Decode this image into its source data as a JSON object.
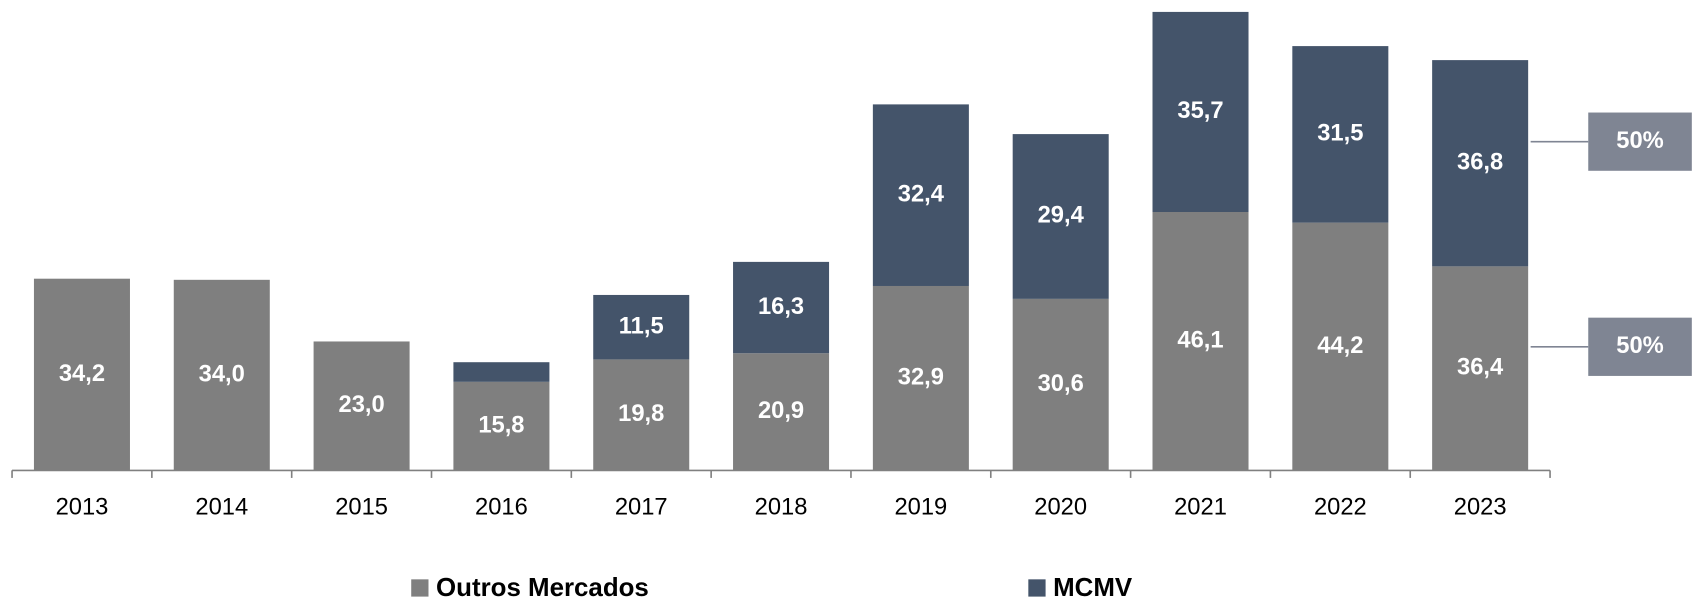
{
  "chart_data": {
    "type": "stacked_bar",
    "categories": [
      "2013",
      "2014",
      "2015",
      "2016",
      "2017",
      "2018",
      "2019",
      "2020",
      "2021",
      "2022",
      "2023"
    ],
    "series": [
      {
        "name": "Outros Mercados",
        "color": "#7f7f7f",
        "values": [
          34.2,
          34.0,
          23.0,
          15.8,
          19.8,
          20.9,
          32.9,
          30.6,
          46.1,
          44.2,
          36.4
        ],
        "value_labels": [
          "34,2",
          "34,0",
          "23,0",
          "15,8",
          "19,8",
          "20,9",
          "32,9",
          "30,6",
          "46,1",
          "44,2",
          "36,4"
        ]
      },
      {
        "name": "MCMV",
        "color": "#44546a",
        "values": [
          null,
          null,
          null,
          3.5,
          11.5,
          16.3,
          32.4,
          29.4,
          35.7,
          31.5,
          36.8
        ],
        "value_labels": [
          null,
          null,
          null,
          null,
          "11,5",
          "16,3",
          "32,4",
          "29,4",
          "35,7",
          "31,5",
          "36,8"
        ]
      }
    ],
    "share_labels": [
      {
        "value": 50,
        "label": "50%"
      },
      {
        "value": 50,
        "label": "50%"
      }
    ],
    "share_color": "#7f8593",
    "ylim": [
      0,
      82
    ]
  }
}
